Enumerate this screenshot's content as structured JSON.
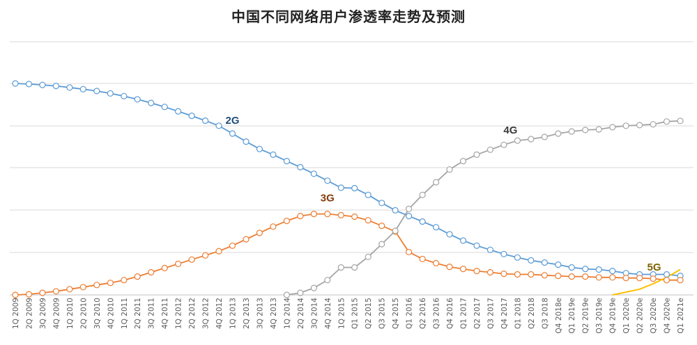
{
  "chart_data": {
    "type": "line",
    "title": "中国不同网络用户渗透率走势及预测",
    "xlabel": "",
    "ylabel": "",
    "ylim": [
      0,
      100
    ],
    "grid": "horizontal",
    "legend": "none",
    "categories": [
      "1Q 2009",
      "2Q 2009",
      "3Q 2009",
      "4Q 2009",
      "1Q 2010",
      "2Q 2010",
      "3Q 2010",
      "4Q 2010",
      "1Q 2011",
      "2Q 2011",
      "3Q 2011",
      "4Q 2011",
      "1Q 2012",
      "2Q 2012",
      "3Q 2012",
      "4Q 2012",
      "1Q 2013",
      "2Q 2013",
      "3Q 2013",
      "4Q 2013",
      "1Q 2014",
      "2Q 2014",
      "3Q 2014",
      "4Q 2014",
      "1Q 2015",
      "Q1 2015",
      "Q2 2015",
      "Q3 2015",
      "Q4 2015",
      "Q1 2016",
      "Q2 2016",
      "Q3 2016",
      "Q4 2016",
      "Q1 2017",
      "Q2 2017",
      "Q3 2017",
      "Q4 2017",
      "Q1 2018",
      "Q2 2018",
      "Q3 2018",
      "Q4 2018e",
      "Q1 2019e",
      "Q2 2019e",
      "Q3 2019e",
      "Q4 2019e",
      "Q1 2020e",
      "Q2 2020e",
      "Q3 2020e",
      "Q4 2020e",
      "Q1 2021e"
    ],
    "series": [
      {
        "name": "2G",
        "color": "#5b9bd5",
        "label_color": "#1f4e79",
        "values": [
          100,
          99.7,
          99.3,
          98.8,
          98.1,
          97.3,
          96.4,
          95.3,
          94,
          92.5,
          90.8,
          88.9,
          86.8,
          84.7,
          82.4,
          80,
          76.3,
          72.5,
          69,
          66.3,
          63.3,
          60.4,
          57.3,
          54,
          50.7,
          50.5,
          47.3,
          43.5,
          40,
          37.3,
          34.7,
          32,
          28.7,
          25.7,
          23.3,
          21.3,
          19.3,
          17.7,
          16.3,
          15.3,
          14.3,
          13,
          12.3,
          12,
          11.3,
          10.3,
          9.7,
          9.7,
          9.7,
          9
        ]
      },
      {
        "name": "3G",
        "color": "#ed7d31",
        "label_color": "#843c0c",
        "values": [
          0,
          0.3,
          1,
          1.7,
          2.7,
          3.7,
          4.7,
          5.7,
          7,
          8.7,
          10.7,
          12.7,
          14.7,
          16.7,
          18.7,
          20.7,
          23.3,
          26.3,
          29.3,
          32.3,
          35,
          37.3,
          38.3,
          38.3,
          37.7,
          37,
          35.3,
          32.7,
          30,
          20.3,
          17,
          15,
          13.3,
          12.3,
          11.3,
          10.7,
          10,
          9.7,
          9.7,
          9.3,
          9,
          8.7,
          8.7,
          8.3,
          8.3,
          8,
          8,
          7.7,
          7,
          7
        ]
      },
      {
        "name": "4G",
        "color": "#a5a5a5",
        "label_color": "#3a3a3a",
        "values": [
          null,
          null,
          null,
          null,
          null,
          null,
          null,
          null,
          null,
          null,
          null,
          null,
          null,
          null,
          null,
          null,
          null,
          null,
          null,
          null,
          0,
          1,
          3.3,
          7,
          13,
          13,
          18,
          24,
          30.3,
          40.7,
          47.3,
          53.3,
          59.3,
          63.3,
          66.3,
          68.7,
          71,
          73,
          73.7,
          74.7,
          76.3,
          77.3,
          78,
          78.3,
          79.3,
          80,
          80.3,
          80.7,
          82,
          82.3
        ]
      },
      {
        "name": "5G",
        "color": "#ffc000",
        "label_color": "#7f6000",
        "values": [
          null,
          null,
          null,
          null,
          null,
          null,
          null,
          null,
          null,
          null,
          null,
          null,
          null,
          null,
          null,
          null,
          null,
          null,
          null,
          null,
          null,
          null,
          null,
          null,
          null,
          null,
          null,
          null,
          null,
          null,
          null,
          null,
          null,
          null,
          null,
          null,
          null,
          null,
          null,
          null,
          null,
          null,
          null,
          null,
          0,
          1.3,
          2.7,
          5.3,
          8.3,
          12
        ]
      }
    ],
    "series_label_at": [
      16,
      23,
      37,
      48
    ]
  }
}
